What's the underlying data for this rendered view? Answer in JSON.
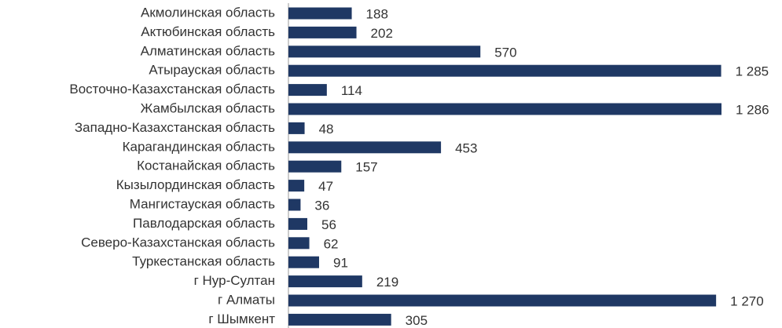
{
  "chart_data": {
    "type": "barh",
    "categories": [
      "Акмолинская область",
      "Актюбинская область",
      "Алматинская область",
      "Атырауская область",
      "Восточно-Казахстанская область",
      "Жамбылская область",
      "Западно-Казахстанская область",
      "Карагандинская область",
      "Костанайская область",
      "Кызылординская область",
      "Мангистауская область",
      "Павлодарская область",
      "Северо-Казахстанская область",
      "Туркестанская область",
      "г Нур-Султан",
      "г Алматы",
      "г Шымкент"
    ],
    "values": [
      188,
      202,
      570,
      1285,
      114,
      1286,
      48,
      453,
      157,
      47,
      36,
      56,
      62,
      91,
      219,
      1270,
      305
    ],
    "value_labels": [
      "188",
      "202",
      "570",
      "1 285",
      "114",
      "1 286",
      "48",
      "453",
      "157",
      "47",
      "36",
      "56",
      "62",
      "91",
      "219",
      "1 270",
      "305"
    ],
    "color": "#1f3864"
  }
}
